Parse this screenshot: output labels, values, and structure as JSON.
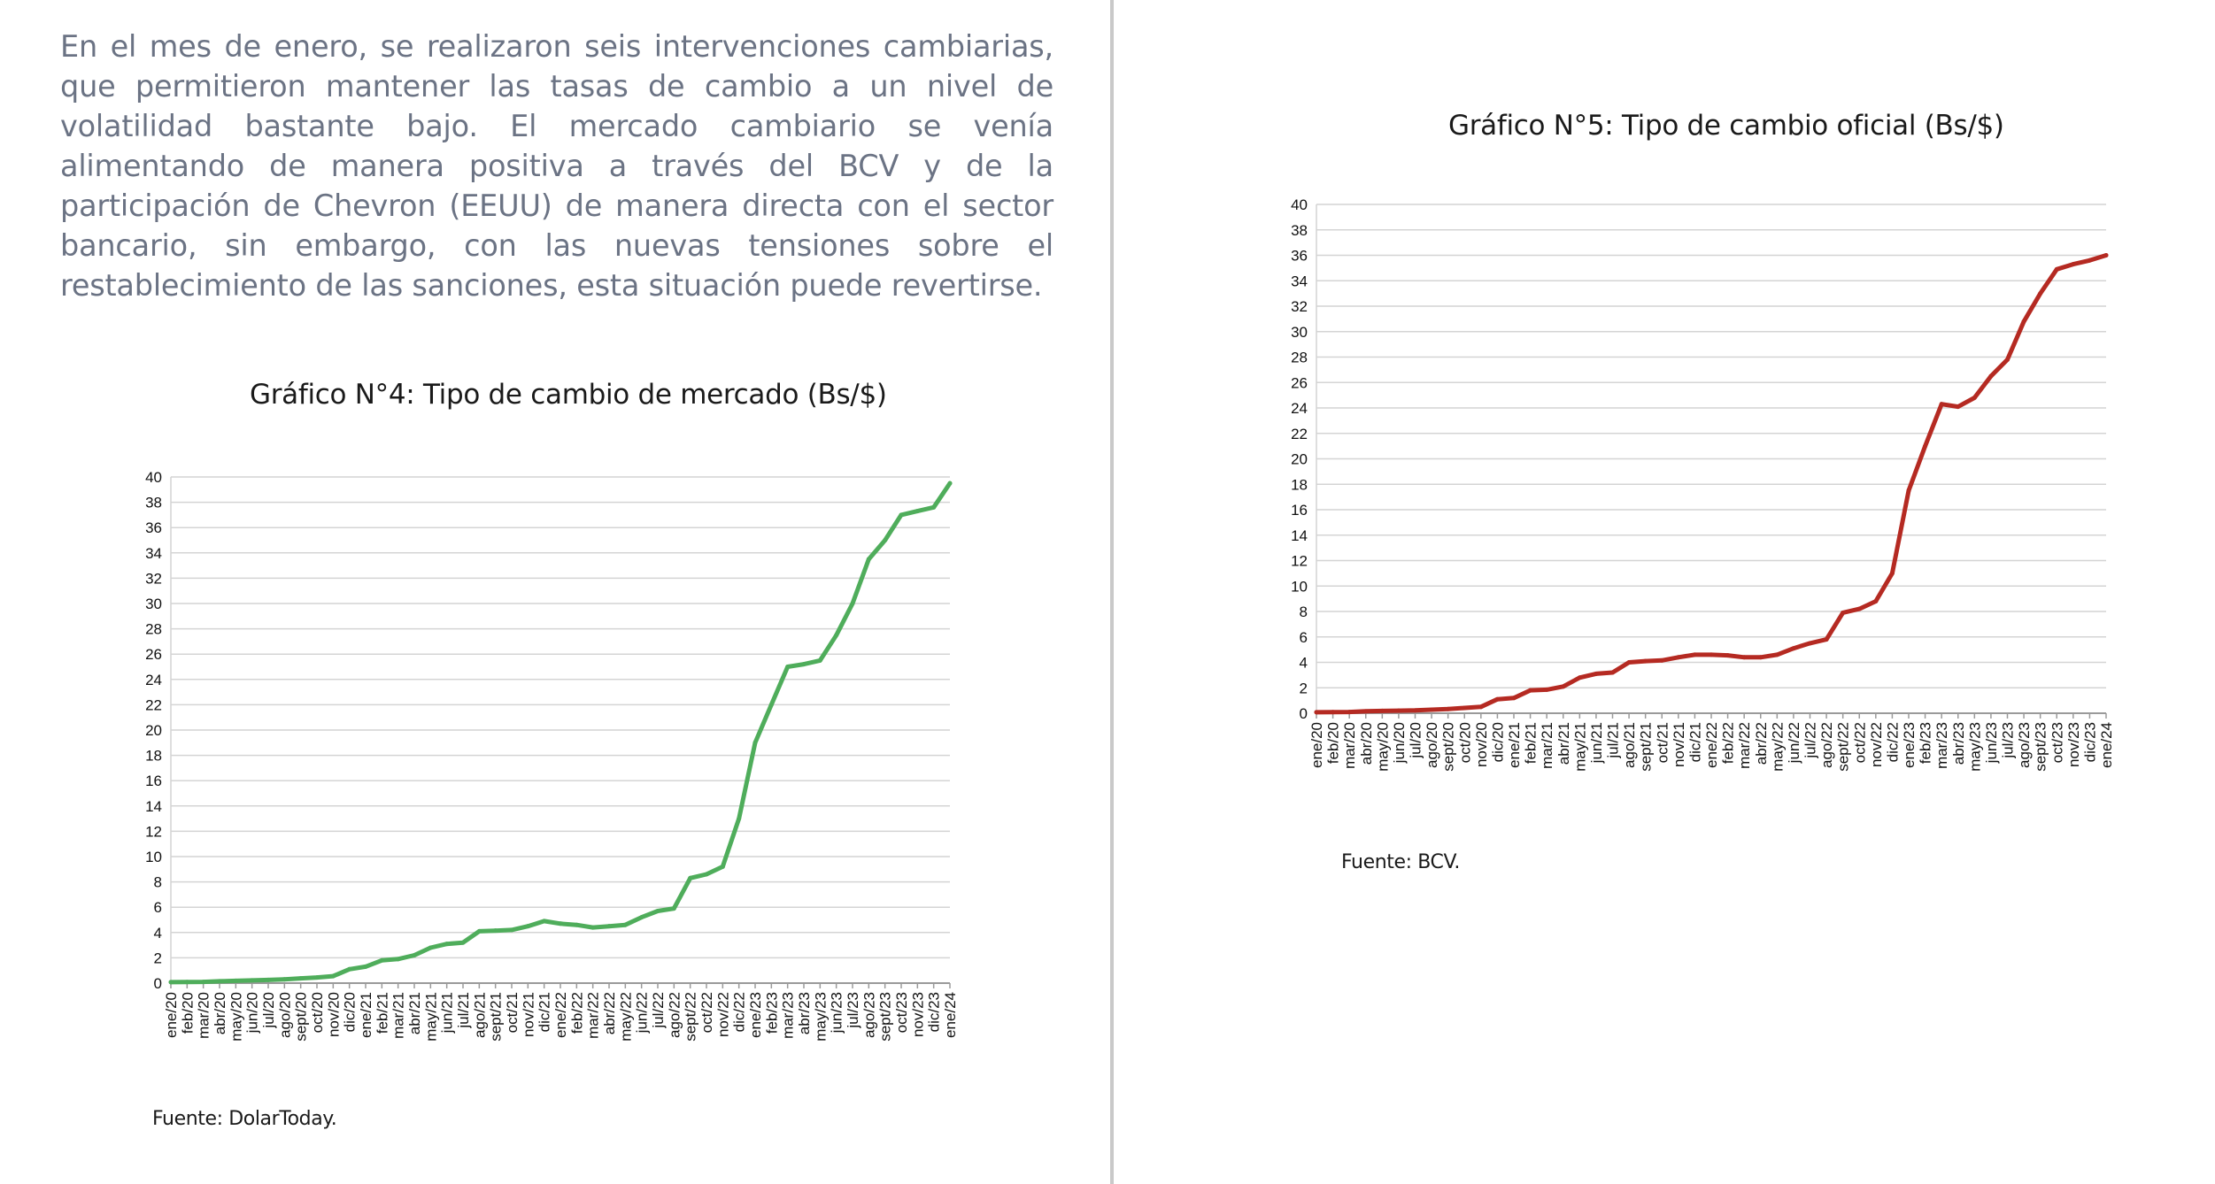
{
  "intro_text": "En el mes de enero, se realizaron seis intervenciones cambiarias, que permitieron mantener las tasas de cambio a un nivel de volatilidad bastante bajo. El mercado cambiario se venía alimentando de manera positiva a través del BCV y de la participación de Chevron (EEUU) de manera directa con el sector bancario, sin embargo, con las nuevas tensiones sobre el restablecimiento de las sanciones, esta situación puede revertirse.",
  "chart_data": [
    {
      "type": "line",
      "title": "Gráfico N°4: Tipo de cambio de mercado (Bs/$)",
      "source": "Fuente: DolarToday.",
      "xlabel": "",
      "ylabel": "",
      "ylim": [
        0,
        40
      ],
      "yticks": [
        0,
        2,
        4,
        6,
        8,
        10,
        12,
        14,
        16,
        18,
        20,
        22,
        24,
        26,
        28,
        30,
        32,
        34,
        36,
        38,
        40
      ],
      "grid": true,
      "line_color": "#4fad5b",
      "categories": [
        "ene/20",
        "feb/20",
        "mar/20",
        "abr/20",
        "may/20",
        "jun/20",
        "jul/20",
        "ago/20",
        "sept/20",
        "oct/20",
        "nov/20",
        "dic/20",
        "ene/21",
        "feb/21",
        "mar/21",
        "abr/21",
        "may/21",
        "jun/21",
        "jul/21",
        "ago/21",
        "sept/21",
        "oct/21",
        "nov/21",
        "dic/21",
        "ene/22",
        "feb/22",
        "mar/22",
        "abr/22",
        "may/22",
        "jun/22",
        "jul/22",
        "ago/22",
        "sept/22",
        "oct/22",
        "nov/22",
        "dic/22",
        "ene/23",
        "feb/23",
        "mar/23",
        "abr/23",
        "may/23",
        "jun/23",
        "jul/23",
        "ago/23",
        "sept/23",
        "oct/23",
        "nov/23",
        "dic/23",
        "ene/24"
      ],
      "values": [
        0.08,
        0.09,
        0.1,
        0.15,
        0.18,
        0.22,
        0.25,
        0.3,
        0.38,
        0.45,
        0.55,
        1.1,
        1.3,
        1.8,
        1.9,
        2.2,
        2.8,
        3.1,
        3.2,
        4.1,
        4.15,
        4.2,
        4.5,
        4.9,
        4.7,
        4.6,
        4.4,
        4.5,
        4.6,
        5.2,
        5.7,
        5.9,
        8.3,
        8.6,
        9.2,
        13.0,
        19.0,
        22.0,
        25.0,
        25.2,
        25.5,
        27.5,
        30.0,
        33.5,
        35.0,
        37.0,
        37.3,
        37.6,
        39.5
      ]
    },
    {
      "type": "line",
      "title": "Gráfico N°5: Tipo de cambio oficial (Bs/$)",
      "source": "Fuente: BCV.",
      "xlabel": "",
      "ylabel": "",
      "ylim": [
        0,
        40
      ],
      "yticks": [
        0,
        2,
        4,
        6,
        8,
        10,
        12,
        14,
        16,
        18,
        20,
        22,
        24,
        26,
        28,
        30,
        32,
        34,
        36,
        38,
        40
      ],
      "grid": true,
      "line_color": "#b52a22",
      "categories": [
        "ene/20",
        "feb/20",
        "mar/20",
        "abr/20",
        "may/20",
        "jun/20",
        "jul/20",
        "ago/20",
        "sept/20",
        "oct/20",
        "nov/20",
        "dic/20",
        "ene/21",
        "feb/21",
        "mar/21",
        "abr/21",
        "may/21",
        "jun/21",
        "jul/21",
        "ago/21",
        "sept/21",
        "oct/21",
        "nov/21",
        "dic/21",
        "ene/22",
        "feb/22",
        "mar/22",
        "abr/22",
        "may/22",
        "jun/22",
        "jul/22",
        "ago/22",
        "sept/22",
        "oct/22",
        "nov/22",
        "dic/22",
        "ene/23",
        "feb/23",
        "mar/23",
        "abr/23",
        "may/23",
        "jun/23",
        "jul/23",
        "ago/23",
        "sept/23",
        "oct/23",
        "nov/23",
        "dic/23",
        "ene/24"
      ],
      "values": [
        0.08,
        0.09,
        0.1,
        0.15,
        0.18,
        0.2,
        0.22,
        0.28,
        0.33,
        0.42,
        0.5,
        1.1,
        1.2,
        1.8,
        1.85,
        2.1,
        2.8,
        3.1,
        3.2,
        4.0,
        4.1,
        4.15,
        4.4,
        4.6,
        4.6,
        4.55,
        4.4,
        4.4,
        4.6,
        5.1,
        5.5,
        5.8,
        7.9,
        8.2,
        8.8,
        11.0,
        17.5,
        21.0,
        24.3,
        24.1,
        24.8,
        26.5,
        27.8,
        30.8,
        33.0,
        34.9,
        35.3,
        35.6,
        36.0
      ]
    }
  ]
}
